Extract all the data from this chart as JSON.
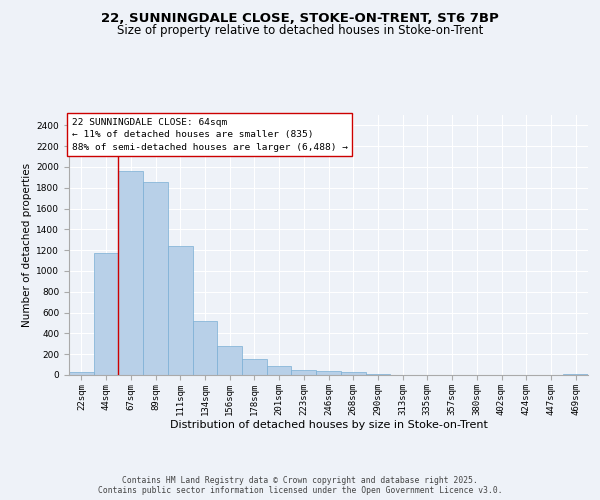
{
  "title_line1": "22, SUNNINGDALE CLOSE, STOKE-ON-TRENT, ST6 7BP",
  "title_line2": "Size of property relative to detached houses in Stoke-on-Trent",
  "xlabel": "Distribution of detached houses by size in Stoke-on-Trent",
  "ylabel": "Number of detached properties",
  "categories": [
    "22sqm",
    "44sqm",
    "67sqm",
    "89sqm",
    "111sqm",
    "134sqm",
    "156sqm",
    "178sqm",
    "201sqm",
    "223sqm",
    "246sqm",
    "268sqm",
    "290sqm",
    "313sqm",
    "335sqm",
    "357sqm",
    "380sqm",
    "402sqm",
    "424sqm",
    "447sqm",
    "469sqm"
  ],
  "values": [
    25,
    1175,
    1960,
    1855,
    1245,
    520,
    275,
    155,
    85,
    48,
    35,
    30,
    5,
    2,
    1,
    1,
    0,
    0,
    0,
    0,
    5
  ],
  "bar_color": "#b8d0e8",
  "bar_edge_color": "#7aafd4",
  "vline_x": 1.5,
  "vline_color": "#cc0000",
  "annotation_text": "22 SUNNINGDALE CLOSE: 64sqm\n← 11% of detached houses are smaller (835)\n88% of semi-detached houses are larger (6,488) →",
  "annotation_box_color": "#ffffff",
  "annotation_box_edge": "#cc0000",
  "ylim": [
    0,
    2500
  ],
  "yticks": [
    0,
    200,
    400,
    600,
    800,
    1000,
    1200,
    1400,
    1600,
    1800,
    2000,
    2200,
    2400
  ],
  "background_color": "#eef2f8",
  "grid_color": "#ffffff",
  "footer_line1": "Contains HM Land Registry data © Crown copyright and database right 2025.",
  "footer_line2": "Contains public sector information licensed under the Open Government Licence v3.0.",
  "title_fontsize": 9.5,
  "subtitle_fontsize": 8.5,
  "tick_fontsize": 6.5,
  "ylabel_fontsize": 7.5,
  "xlabel_fontsize": 8,
  "annotation_fontsize": 6.8,
  "footer_fontsize": 5.8
}
